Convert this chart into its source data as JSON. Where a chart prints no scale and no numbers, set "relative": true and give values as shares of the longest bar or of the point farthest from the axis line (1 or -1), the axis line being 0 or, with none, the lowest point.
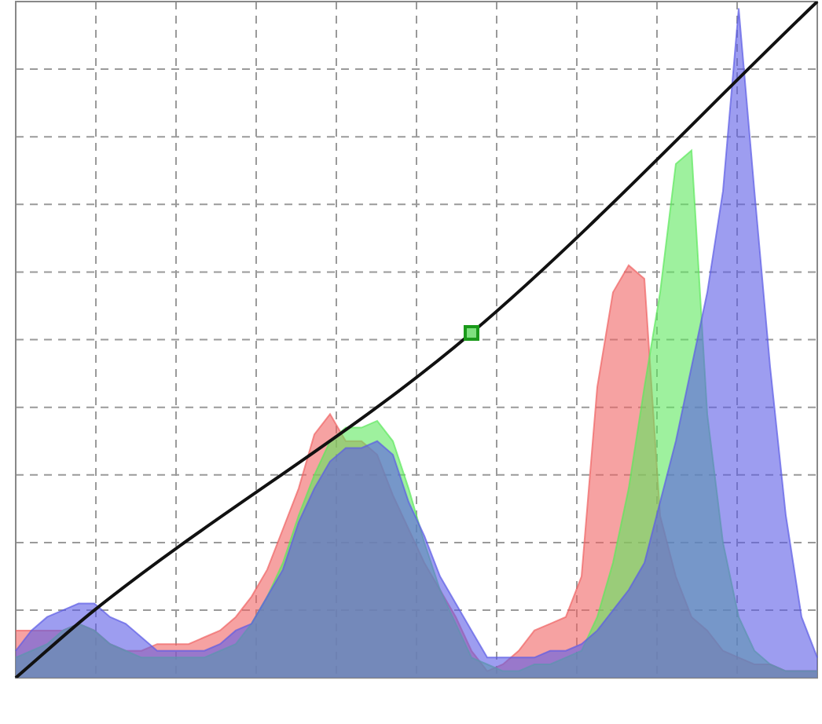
{
  "chart_data": {
    "type": "area",
    "relative": true,
    "grid": true,
    "legend": false,
    "categories": [
      null,
      null,
      null,
      null,
      null,
      null,
      null,
      null,
      null,
      null,
      null,
      null,
      null,
      null,
      null,
      null,
      null,
      null,
      null,
      null,
      null,
      null,
      null,
      null,
      null,
      null,
      null,
      null,
      null,
      null,
      null,
      null,
      null,
      null,
      null,
      null,
      null,
      null,
      null,
      null,
      null,
      null,
      null,
      null,
      null,
      null,
      null,
      null,
      null,
      null,
      null,
      null
    ],
    "series": [
      {
        "color": "#f06464",
        "values": [
          0.07,
          0.07,
          0.07,
          0.07,
          0.08,
          0.07,
          0.05,
          0.04,
          0.04,
          0.05,
          0.05,
          0.05,
          0.06,
          0.07,
          0.09,
          0.12,
          0.16,
          0.22,
          0.28,
          0.36,
          0.39,
          0.35,
          0.35,
          0.33,
          0.27,
          0.22,
          0.17,
          0.13,
          0.09,
          0.04,
          0.01,
          0.02,
          0.04,
          0.07,
          0.08,
          0.09,
          0.15,
          0.43,
          0.57,
          0.61,
          0.59,
          0.24,
          0.15,
          0.09,
          0.07,
          0.04,
          0.03,
          0.02,
          0.02,
          0.01,
          0.01,
          0.01
        ]
      },
      {
        "color": "#5ee85e",
        "values": [
          0.03,
          0.04,
          0.05,
          0.07,
          0.08,
          0.07,
          0.05,
          0.04,
          0.03,
          0.03,
          0.03,
          0.03,
          0.03,
          0.04,
          0.05,
          0.08,
          0.12,
          0.17,
          0.24,
          0.3,
          0.35,
          0.37,
          0.37,
          0.38,
          0.35,
          0.28,
          0.2,
          0.13,
          0.08,
          0.03,
          0.02,
          0.01,
          0.01,
          0.02,
          0.02,
          0.03,
          0.04,
          0.09,
          0.17,
          0.28,
          0.43,
          0.57,
          0.76,
          0.78,
          0.39,
          0.2,
          0.09,
          0.04,
          0.02,
          0.01,
          0.01,
          0.01
        ]
      },
      {
        "color": "#5c5ce6",
        "values": [
          0.04,
          0.07,
          0.09,
          0.1,
          0.11,
          0.11,
          0.09,
          0.08,
          0.06,
          0.04,
          0.04,
          0.04,
          0.04,
          0.05,
          0.07,
          0.08,
          0.12,
          0.16,
          0.23,
          0.28,
          0.32,
          0.34,
          0.34,
          0.35,
          0.33,
          0.26,
          0.21,
          0.15,
          0.11,
          0.07,
          0.03,
          0.03,
          0.03,
          0.03,
          0.04,
          0.04,
          0.05,
          0.07,
          0.1,
          0.13,
          0.17,
          0.26,
          0.35,
          0.46,
          0.57,
          0.72,
          0.99,
          0.72,
          0.46,
          0.24,
          0.09,
          0.03
        ]
      },
      {
        "type": "line",
        "color": "#111111",
        "values": [
          0,
          null,
          null,
          null,
          null,
          0.1,
          null,
          null,
          null,
          null,
          null,
          null,
          null,
          null,
          null,
          null,
          null,
          null,
          null,
          null,
          null,
          null,
          null,
          null,
          null,
          null,
          null,
          null,
          null,
          0.51,
          null,
          null,
          null,
          null,
          null,
          null,
          null,
          null,
          null,
          null,
          null,
          null,
          null,
          null,
          null,
          null,
          null,
          null,
          null,
          null,
          null,
          1.0
        ]
      }
    ]
  }
}
